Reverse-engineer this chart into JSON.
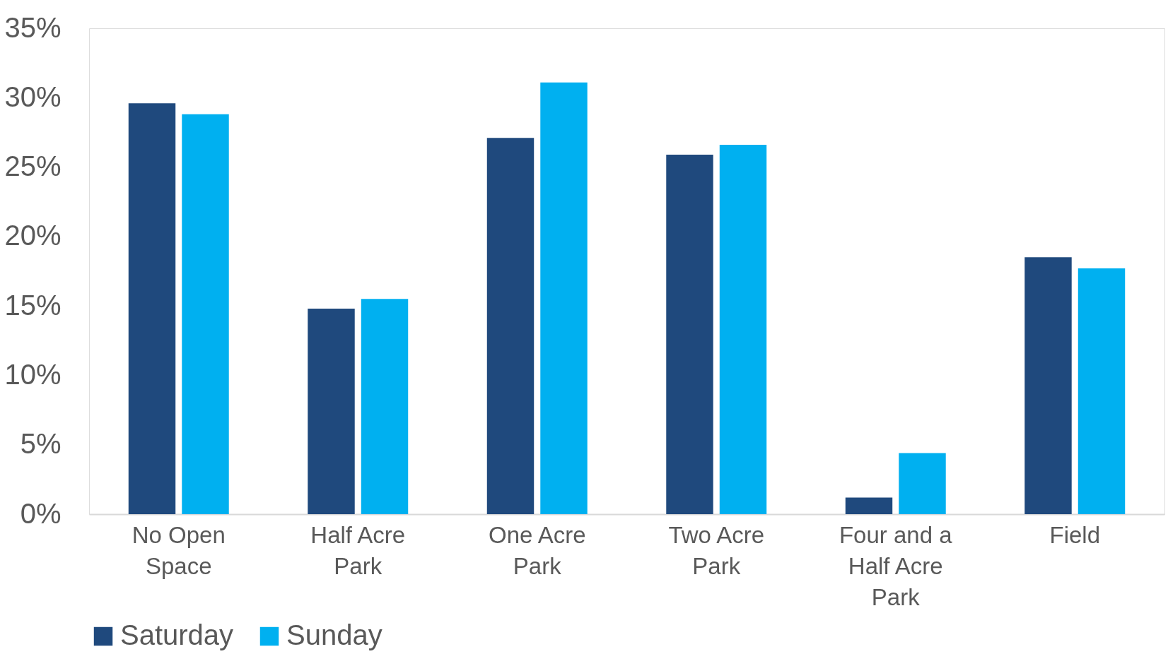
{
  "chart_data": {
    "type": "bar",
    "categories": [
      "No Open Space",
      "Half Acre Park",
      "One Acre Park",
      "Two Acre Park",
      "Four and a Half Acre Park",
      "Field"
    ],
    "series": [
      {
        "name": "Saturday",
        "color": "#1f497d",
        "values": [
          29.6,
          14.8,
          27.1,
          25.9,
          1.2,
          18.5
        ]
      },
      {
        "name": "Sunday",
        "color": "#00b0f0",
        "values": [
          28.8,
          15.5,
          31.1,
          26.6,
          4.4,
          17.7
        ]
      }
    ],
    "ylim": [
      0,
      35
    ],
    "yticks": [
      {
        "value": 0,
        "label": "0%"
      },
      {
        "value": 5,
        "label": "5%"
      },
      {
        "value": 10,
        "label": "10%"
      },
      {
        "value": 15,
        "label": "15%"
      },
      {
        "value": 20,
        "label": "20%"
      },
      {
        "value": 25,
        "label": "25%"
      },
      {
        "value": 30,
        "label": "30%"
      },
      {
        "value": 35,
        "label": "35%"
      }
    ],
    "grid": false,
    "legend": "bottom"
  }
}
